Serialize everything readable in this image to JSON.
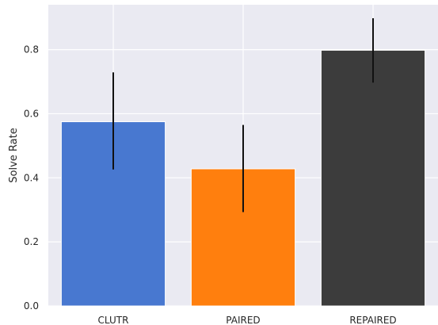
{
  "chart_data": {
    "type": "bar",
    "categories": [
      "CLUTR",
      "PAIRED",
      "REPAIRED"
    ],
    "values": [
      0.575,
      0.428,
      0.798
    ],
    "error_low": [
      0.426,
      0.293,
      0.697
    ],
    "error_high": [
      0.729,
      0.565,
      0.898
    ],
    "colors": [
      "#4878d0",
      "#ff7f0e",
      "#3c3c3c"
    ],
    "title": "",
    "xlabel": "",
    "ylabel": "Solve Rate",
    "ylim": [
      0,
      0.94
    ],
    "yticks": [
      "0.0",
      "0.2",
      "0.4",
      "0.6",
      "0.8"
    ],
    "grid": true,
    "background": "#eaeaf2"
  }
}
